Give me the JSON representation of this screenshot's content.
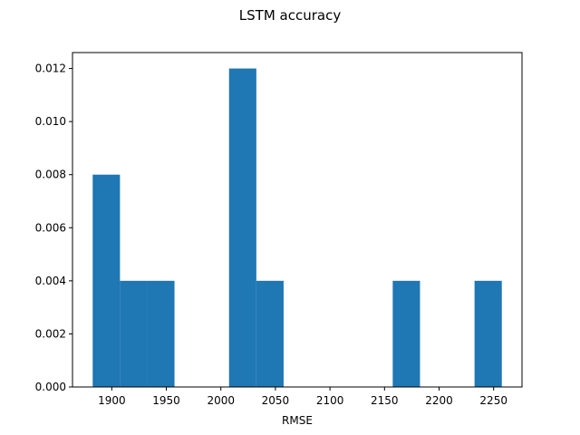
{
  "chart_data": {
    "type": "bar",
    "title": "LSTM accuracy",
    "xlabel": "RMSE",
    "ylabel": "",
    "bins": [
      {
        "x0": 1882.5,
        "x1": 1907.5,
        "value": 0.008
      },
      {
        "x0": 1907.5,
        "x1": 1932.5,
        "value": 0.004
      },
      {
        "x0": 1932.5,
        "x1": 1957.5,
        "value": 0.004
      },
      {
        "x0": 1957.5,
        "x1": 1982.5,
        "value": 0.0
      },
      {
        "x0": 1982.5,
        "x1": 2007.5,
        "value": 0.0
      },
      {
        "x0": 2007.5,
        "x1": 2032.5,
        "value": 0.012
      },
      {
        "x0": 2032.5,
        "x1": 2057.5,
        "value": 0.004
      },
      {
        "x0": 2057.5,
        "x1": 2082.5,
        "value": 0.0
      },
      {
        "x0": 2082.5,
        "x1": 2107.5,
        "value": 0.0
      },
      {
        "x0": 2107.5,
        "x1": 2132.5,
        "value": 0.0
      },
      {
        "x0": 2132.5,
        "x1": 2157.5,
        "value": 0.0
      },
      {
        "x0": 2157.5,
        "x1": 2182.5,
        "value": 0.004
      },
      {
        "x0": 2182.5,
        "x1": 2207.5,
        "value": 0.0
      },
      {
        "x0": 2207.5,
        "x1": 2232.5,
        "value": 0.0
      },
      {
        "x0": 2232.5,
        "x1": 2257.5,
        "value": 0.004
      }
    ],
    "xlim": [
      1864,
      2276
    ],
    "ylim": [
      0,
      0.0126
    ],
    "xticks": [
      1900,
      1950,
      2000,
      2050,
      2100,
      2150,
      2200,
      2250
    ],
    "xtick_labels": [
      "1900",
      "1950",
      "2000",
      "2050",
      "2100",
      "2150",
      "2200",
      "2250"
    ],
    "yticks": [
      0,
      0.002,
      0.004,
      0.006,
      0.008,
      0.01,
      0.012
    ],
    "ytick_labels": [
      "0.000",
      "0.002",
      "0.004",
      "0.006",
      "0.008",
      "0.010",
      "0.012"
    ],
    "bar_color": "#1f77b4",
    "grid": false,
    "legend": "none"
  }
}
